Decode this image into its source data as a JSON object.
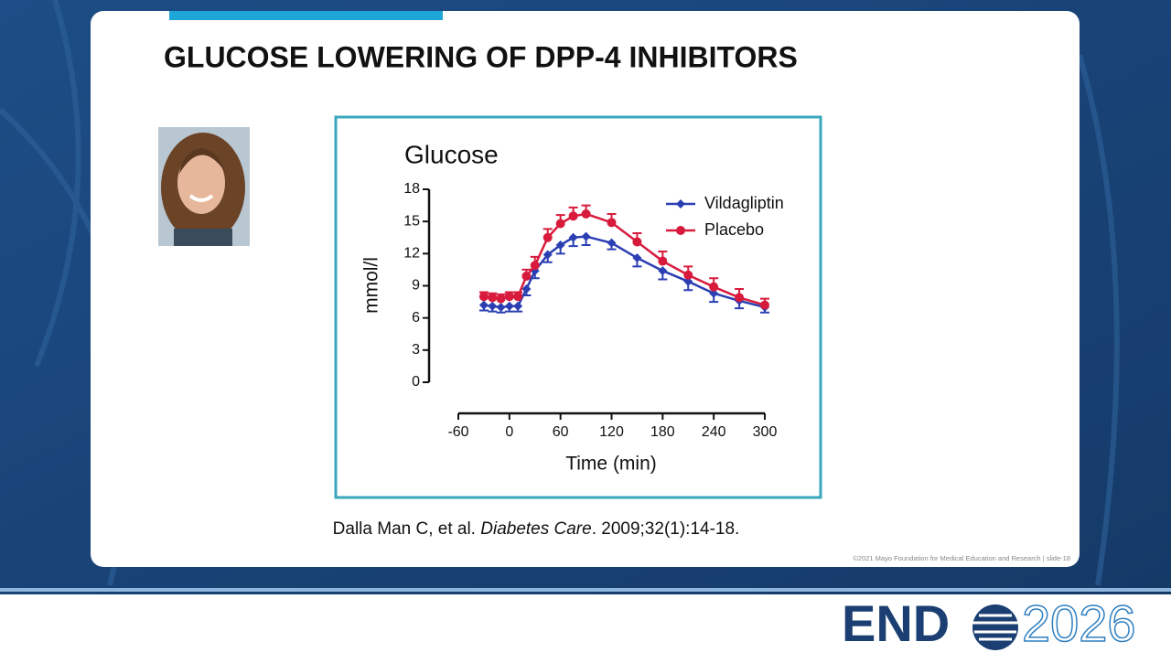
{
  "slide": {
    "title": "GLUCOSE LOWERING OF DPP-4 INHIBITORS",
    "citation": [
      "Dalla Man C, et al. ",
      "Diabetes Care",
      ". 2009;32(1):14-18."
    ],
    "footer": "©2021 Mayo Foundation for Medical Education and Research  |  slide-18",
    "logo": {
      "left": "END",
      "right": "2026"
    }
  },
  "chart_data": {
    "type": "line",
    "title": "Glucose",
    "x_label": "Time (min)",
    "y_label": "mmol/l",
    "x": [
      -30,
      -20,
      -10,
      0,
      10,
      20,
      30,
      45,
      60,
      75,
      90,
      120,
      150,
      180,
      210,
      240,
      270,
      300
    ],
    "series": [
      {
        "name": "Vildagliptin",
        "color": "#2b3fb3",
        "marker": "diamond",
        "error_direction": "down",
        "values": [
          7.2,
          7.1,
          7.0,
          7.1,
          7.1,
          8.7,
          10.4,
          11.9,
          12.8,
          13.5,
          13.6,
          13.0,
          11.6,
          10.4,
          9.4,
          8.3,
          7.6,
          7.0
        ],
        "errors": [
          0.5,
          0.5,
          0.5,
          0.5,
          0.5,
          0.6,
          0.7,
          0.7,
          0.8,
          0.8,
          0.8,
          0.6,
          0.8,
          0.8,
          0.8,
          0.8,
          0.7,
          0.5
        ]
      },
      {
        "name": "Placebo",
        "color": "#d81b3c",
        "marker": "circle",
        "error_direction": "up",
        "values": [
          8.0,
          7.9,
          7.8,
          8.0,
          8.0,
          9.9,
          10.9,
          13.5,
          14.8,
          15.5,
          15.7,
          14.9,
          13.1,
          11.3,
          10.0,
          8.9,
          7.9,
          7.2
        ],
        "errors": [
          0.4,
          0.4,
          0.4,
          0.4,
          0.4,
          0.6,
          0.8,
          0.8,
          0.8,
          0.8,
          0.8,
          0.8,
          0.8,
          0.9,
          0.8,
          0.8,
          0.8,
          0.6
        ]
      }
    ],
    "xlim": [
      -60,
      300
    ],
    "xticks": [
      -60,
      0,
      60,
      120,
      180,
      240,
      300
    ],
    "ylim": [
      0,
      18
    ],
    "yticks": [
      0,
      3,
      6,
      9,
      12,
      15,
      18
    ],
    "legend": "upper right",
    "grid": false
  }
}
